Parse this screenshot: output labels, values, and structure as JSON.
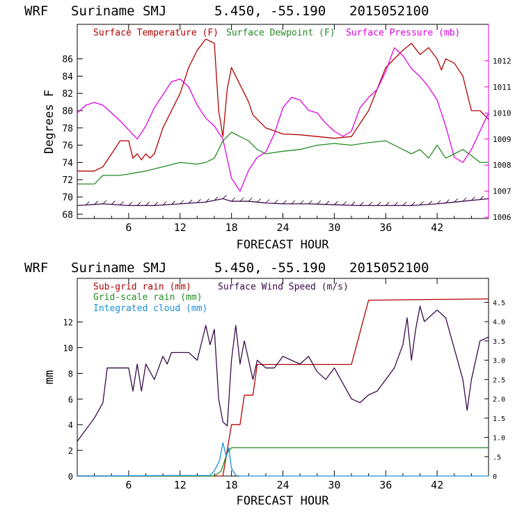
{
  "charts": [
    {
      "header": {
        "model": "WRF",
        "site": "Suriname SMJ",
        "coords": "5.450, -55.190",
        "run": "2015052100"
      },
      "xlabel": "FORECAST HOUR",
      "ylabel": "Degrees F",
      "legend": [
        {
          "label": "Surface Temperature (F)",
          "color": "#b00000"
        },
        {
          "label": "Surface Dewpoint (F)",
          "color": "#228b22"
        },
        {
          "label": "Surface Pressure (mb)",
          "color": "#e000e0"
        }
      ]
    },
    {
      "header": {
        "model": "WRF",
        "site": "Suriname SMJ",
        "coords": "5.450, -55.190",
        "run": "2015052100"
      },
      "xlabel": "FORECAST HOUR",
      "ylabel": "mm",
      "legend": [
        {
          "label": "Sub-grid rain (mm)",
          "color": "#b00000"
        },
        {
          "label": "Surface Wind Speed (m/s)",
          "color": "#3a0a4a"
        },
        {
          "label": "Grid-scale rain (mm)",
          "color": "#228b22"
        },
        {
          "label": "Integrated cloud (mm)",
          "color": "#1a8fd8"
        }
      ]
    }
  ],
  "chart_data": [
    {
      "type": "line",
      "title": "WRF Suriname SMJ 5.450, -55.190 2015052100",
      "xlabel": "FORECAST HOUR",
      "ylabel": "Degrees F",
      "y2label": "Surface Pressure (mb)",
      "xlim": [
        0,
        48
      ],
      "ylim": [
        67.5,
        90
      ],
      "y2lim": [
        1005.95,
        1013.4
      ],
      "xticks": [
        "6",
        "12",
        "18",
        "24",
        "30",
        "36",
        "42"
      ],
      "yticks": [
        "68",
        "70",
        "72",
        "74",
        "76",
        "78",
        "80",
        "82",
        "84",
        "86"
      ],
      "y2ticks": [
        "1006",
        "1007",
        "1008",
        "1009",
        "1010",
        "1011",
        "1012"
      ],
      "series": [
        {
          "name": "Surface Temperature (F)",
          "axis": "left",
          "color": "#b00000",
          "x": [
            0,
            2,
            3,
            4,
            5,
            6,
            6.5,
            7,
            7.5,
            8,
            8.5,
            9,
            10,
            12,
            13,
            14,
            15,
            16,
            16.5,
            17,
            17.5,
            18,
            18.5,
            19,
            19.5,
            20,
            20.5,
            21,
            22,
            24,
            26,
            28,
            30,
            32,
            34,
            36,
            38,
            39,
            40,
            41,
            42,
            42.5,
            43,
            44,
            45,
            46,
            47,
            48
          ],
          "y": [
            73,
            73,
            73.5,
            75,
            76.5,
            76.5,
            74.5,
            75,
            74.3,
            75,
            74.5,
            75,
            78,
            82,
            85,
            87,
            88.3,
            87.8,
            80,
            77,
            82.5,
            85,
            84,
            83,
            82,
            81,
            79.5,
            79,
            78,
            77.3,
            77.2,
            77,
            76.8,
            77,
            80,
            85,
            87,
            87.8,
            86.5,
            87.3,
            86,
            84.7,
            86,
            85.5,
            84,
            80,
            80,
            79
          ]
        },
        {
          "name": "Surface Dewpoint (F)",
          "axis": "left",
          "color": "#228b22",
          "x": [
            0,
            2,
            3,
            5,
            8,
            10,
            12,
            14,
            15,
            16,
            17,
            17.5,
            18,
            19,
            20,
            21,
            22,
            24,
            26,
            28,
            30,
            32,
            34,
            36,
            38,
            39,
            40,
            41,
            42,
            43,
            44,
            45,
            46,
            47,
            48
          ],
          "y": [
            71.5,
            71.5,
            72.5,
            72.5,
            73,
            73.5,
            74,
            73.8,
            74,
            74.5,
            76.5,
            77,
            77.5,
            77,
            76.5,
            75.5,
            75,
            75.3,
            75.5,
            76,
            76.2,
            76,
            76.3,
            76.5,
            75.5,
            75,
            75.5,
            74.5,
            76,
            74.5,
            75,
            75.5,
            74.8,
            74,
            74
          ]
        },
        {
          "name": "Surface Pressure (mb)",
          "axis": "right",
          "color": "#e000e0",
          "x": [
            0,
            1,
            2,
            3,
            5,
            7,
            8,
            9,
            10,
            11,
            12,
            13,
            14,
            15,
            16,
            17,
            18,
            19,
            20,
            21,
            22,
            23,
            24,
            25,
            26,
            27,
            28,
            29,
            30,
            31,
            32,
            33,
            34,
            35,
            36,
            37,
            38,
            39,
            40,
            41,
            42,
            43,
            44,
            45,
            46,
            47,
            48
          ],
          "y": [
            1010,
            1010.3,
            1010.4,
            1010.3,
            1009.7,
            1009,
            1009.5,
            1010.2,
            1010.7,
            1011.2,
            1011.3,
            1011,
            1010.3,
            1009.8,
            1009.5,
            1009,
            1007.5,
            1007,
            1007.8,
            1008.3,
            1008.5,
            1009.2,
            1010.2,
            1010.6,
            1010.5,
            1010.1,
            1010,
            1009.6,
            1009.3,
            1009.1,
            1009.3,
            1010.2,
            1010.6,
            1010.9,
            1011.6,
            1012.5,
            1012.2,
            1011.7,
            1011.4,
            1011,
            1010.5,
            1009.5,
            1008.3,
            1008.1,
            1008.6,
            1009.3,
            1010
          ]
        },
        {
          "name": "Wind barbs",
          "axis": "left",
          "color": "#3a0a4a",
          "x": [
            0,
            3,
            6,
            9,
            12,
            15,
            17,
            18,
            20,
            22,
            24,
            27,
            30,
            33,
            36,
            39,
            42,
            45,
            48
          ],
          "y": [
            69,
            69.2,
            69,
            69,
            69.2,
            69.4,
            69.8,
            69.5,
            69.5,
            69.3,
            69.2,
            69.2,
            69.1,
            69,
            69,
            69,
            69.2,
            69.5,
            69.8
          ]
        }
      ]
    },
    {
      "type": "line",
      "title": "WRF Suriname SMJ 5.450, -55.190 2015052100",
      "xlabel": "FORECAST HOUR",
      "ylabel": "mm",
      "y2label": "Surface Wind Speed (m/s)",
      "xlim": [
        0,
        48
      ],
      "ylim": [
        0,
        15.4
      ],
      "y2lim": [
        0,
        5.12
      ],
      "xticks": [
        "6",
        "12",
        "18",
        "24",
        "30",
        "36",
        "42"
      ],
      "yticks": [
        "0",
        "2",
        "4",
        "6",
        "8",
        "10",
        "12"
      ],
      "y2ticks": [
        "0",
        ".5",
        "1.0",
        "1.5",
        "2.0",
        "2.5",
        "3.0",
        "3.5",
        "4.0",
        "4.5"
      ],
      "series": [
        {
          "name": "Sub-grid rain (mm)",
          "axis": "left",
          "color": "#b00000",
          "x": [
            0,
            17,
            18,
            19,
            19.5,
            20.5,
            21,
            32,
            34,
            48
          ],
          "y": [
            0,
            0,
            4,
            4,
            6.3,
            6.3,
            8.7,
            8.7,
            13.7,
            13.8
          ]
        },
        {
          "name": "Surface Wind Speed (m/s)",
          "axis": "right",
          "color": "#3a0a4a",
          "x": [
            0,
            1,
            2,
            3,
            3.5,
            4,
            5,
            6,
            6.5,
            7,
            7.5,
            8,
            9,
            10,
            10.5,
            11,
            12,
            13,
            14,
            15,
            15.5,
            16,
            16.5,
            17,
            17.5,
            18,
            18.5,
            19,
            19.5,
            20,
            20.5,
            21,
            22,
            23,
            24,
            25,
            26,
            27,
            28,
            29,
            30,
            31,
            32,
            33,
            34,
            35,
            36,
            37,
            38,
            38.5,
            39,
            39.5,
            40,
            40.5,
            41,
            42,
            43,
            44,
            45,
            45.5,
            46,
            47,
            48
          ],
          "y": [
            0.9,
            1.2,
            1.5,
            1.9,
            2.8,
            2.8,
            2.8,
            2.8,
            2.2,
            2.9,
            2.2,
            2.9,
            2.5,
            3.1,
            2.9,
            3.2,
            3.2,
            3.2,
            3.0,
            3.9,
            3.4,
            3.8,
            2.0,
            1.4,
            1.3,
            3.0,
            3.9,
            2.9,
            3.5,
            3.0,
            2.5,
            3.0,
            2.8,
            2.8,
            3.1,
            3.0,
            2.9,
            3.1,
            2.7,
            2.5,
            2.8,
            2.4,
            2.0,
            1.9,
            2.1,
            2.2,
            2.5,
            2.8,
            3.4,
            4.1,
            3.0,
            3.8,
            4.4,
            4.0,
            4.1,
            4.3,
            4.1,
            3.3,
            2.5,
            1.7,
            2.5,
            3.5,
            3.6
          ]
        },
        {
          "name": "Grid-scale rain (mm)",
          "axis": "left",
          "color": "#228b22",
          "x": [
            0,
            16,
            16.8,
            17.5,
            18,
            20,
            48
          ],
          "y": [
            0,
            0,
            0.4,
            1.8,
            2.2,
            2.2,
            2.2
          ]
        },
        {
          "name": "Integrated cloud (mm)",
          "axis": "left",
          "color": "#1a8fd8",
          "x": [
            0,
            15.5,
            16,
            16.6,
            17,
            17.4,
            17.7,
            18,
            18.5,
            19,
            48
          ],
          "y": [
            0,
            0.05,
            0.4,
            1.2,
            2.6,
            1.5,
            2.2,
            0.6,
            0.05,
            0,
            0
          ]
        }
      ]
    }
  ]
}
